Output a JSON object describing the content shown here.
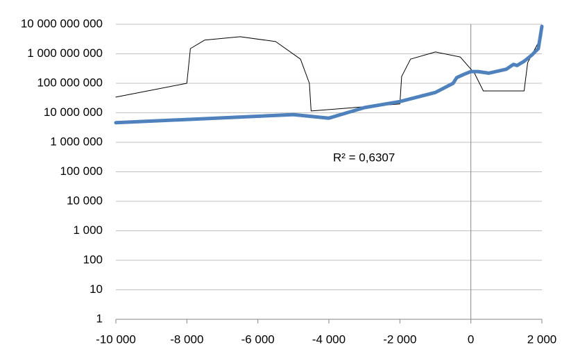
{
  "chart_data": {
    "type": "line",
    "log_y": true,
    "grid": true,
    "annotation": "R² = 0,6307",
    "xlim": [
      -10000,
      2000
    ],
    "xticks": [
      {
        "value": -10000,
        "label": "-10 000"
      },
      {
        "value": -8000,
        "label": "-8 000"
      },
      {
        "value": -6000,
        "label": "-6 000"
      },
      {
        "value": -4000,
        "label": "-4 000"
      },
      {
        "value": -2000,
        "label": "-2 000"
      },
      0,
      {
        "value": 2000,
        "label": "2 000"
      }
    ],
    "ylim": [
      1,
      10000000000
    ],
    "yticks": [
      1,
      10,
      100,
      {
        "value": 1000,
        "label": "1 000"
      },
      {
        "value": 10000,
        "label": "10 000"
      },
      {
        "value": 100000,
        "label": "100 000"
      },
      {
        "value": 1000000,
        "label": "1 000 000"
      },
      {
        "value": 10000000,
        "label": "10 000 000"
      },
      {
        "value": 100000000,
        "label": "100 000 000"
      },
      {
        "value": 1000000000,
        "label": "1 000 000 000"
      },
      {
        "value": 10000000000,
        "label": "10 000 000 000"
      }
    ],
    "series": [
      {
        "color": "#000000",
        "width": 1,
        "x": [
          -10000,
          -8000,
          -7900,
          -7500,
          -6500,
          -5500,
          -4800,
          -4550,
          -4500,
          -2000,
          -1950,
          -1700,
          -1000,
          -300,
          100,
          350,
          1500,
          1600,
          2000
        ],
        "values": [
          34000000,
          100000000,
          1500000000,
          2900000000,
          3800000000,
          2600000000,
          660000000,
          100000000,
          11500000,
          20000000,
          170000000,
          660000000,
          1150000000,
          780000000,
          220000000,
          55000000,
          55000000,
          500000000,
          4000000000
        ]
      },
      {
        "color": "#4f81bd",
        "width": 5,
        "x": [
          -10000,
          -5000,
          -4000,
          -3000,
          -2000,
          -1000,
          -500,
          -400,
          -200,
          0,
          200,
          500,
          1000,
          1200,
          1300,
          1500,
          1700,
          1900,
          2000
        ],
        "values": [
          4600000,
          8700000,
          6600000,
          15000000,
          24000000,
          49000000,
          100000000,
          155000000,
          200000000,
          250000000,
          250000000,
          220000000,
          300000000,
          440000000,
          400000000,
          560000000,
          870000000,
          1500000000,
          8500000000
        ]
      }
    ]
  }
}
